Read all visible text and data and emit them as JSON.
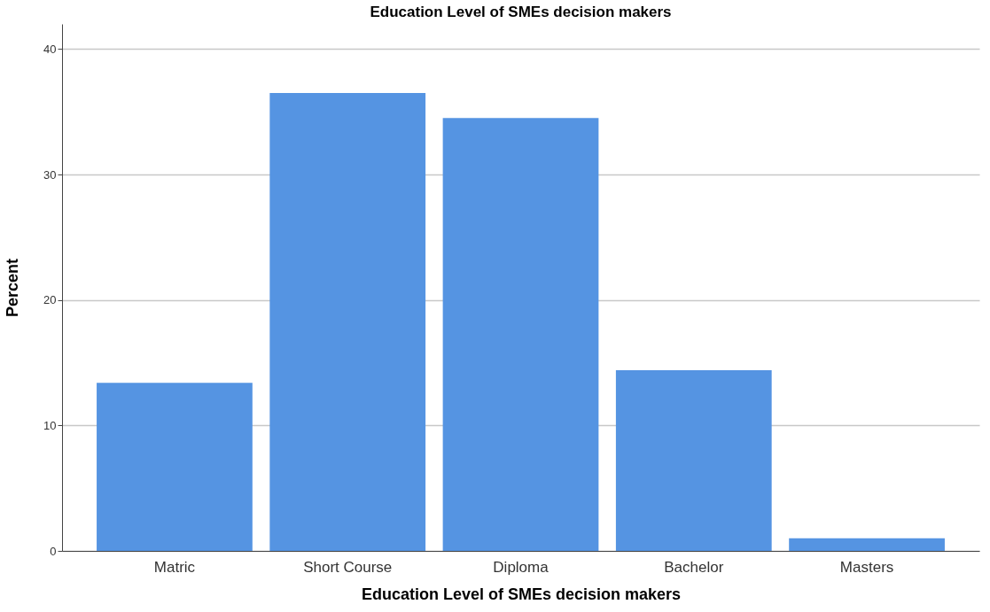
{
  "chart_data": {
    "type": "bar",
    "title": "Education Level of SMEs decision makers",
    "xlabel": "Education Level of SMEs decision makers",
    "ylabel": "Percent",
    "categories": [
      "Matric",
      "Short Course",
      "Diploma",
      "Bachelor",
      "Masters"
    ],
    "values": [
      13.4,
      36.5,
      34.5,
      14.4,
      1.0
    ],
    "color": "#5594e2",
    "ylim": [
      0,
      42
    ],
    "yticks": [
      0,
      10,
      20,
      30,
      40
    ],
    "grid": "y"
  }
}
